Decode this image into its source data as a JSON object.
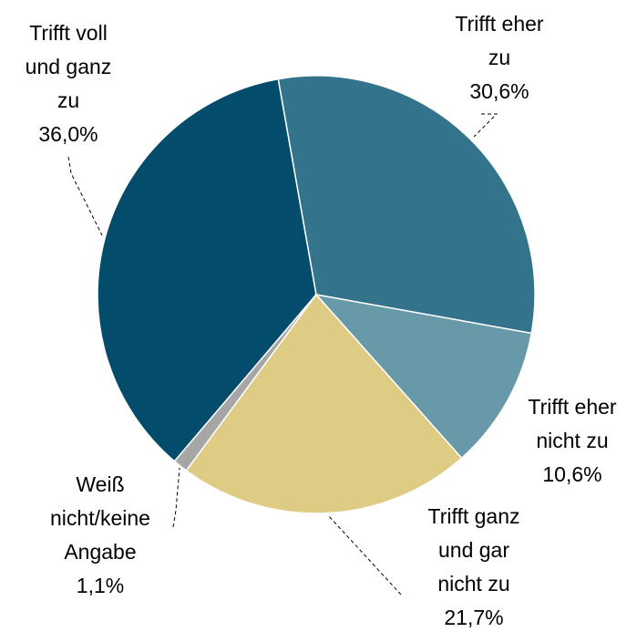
{
  "chart_data": {
    "type": "pie",
    "categories": [
      "Trifft eher zu",
      "Trifft eher nicht zu",
      "Trifft ganz und gar nicht zu",
      "Weiß nicht/keine Angabe",
      "Trifft voll und ganz zu"
    ],
    "values": [
      30.6,
      10.6,
      21.7,
      1.1,
      36.0
    ],
    "value_labels": [
      "30,6%",
      "10,6%",
      "21,7%",
      "1,1%",
      "36,0%"
    ],
    "colors": [
      "#34738c",
      "#6799a9",
      "#decb84",
      "#a6a6a6",
      "#034c6b"
    ]
  }
}
